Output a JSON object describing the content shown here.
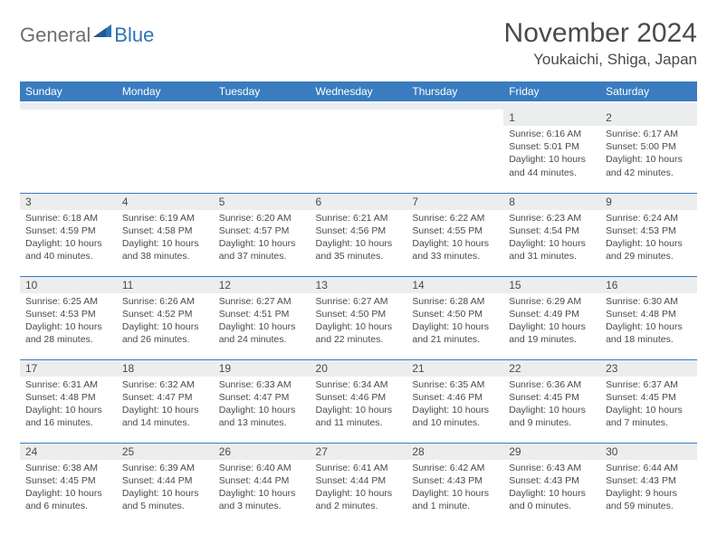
{
  "brand": {
    "part1": "General",
    "part2": "Blue"
  },
  "header": {
    "title": "November 2024",
    "location": "Youkaichi, Shiga, Japan"
  },
  "calendar": {
    "header_bg": "#3a7cbf",
    "header_fg": "#ffffff",
    "cell_border": "#3a7cbf",
    "daynum_bg": "#eceeee",
    "text_color": "#4a4a4a",
    "font_size_day": 12,
    "font_size_body": 10.5,
    "day_names": [
      "Sunday",
      "Monday",
      "Tuesday",
      "Wednesday",
      "Thursday",
      "Friday",
      "Saturday"
    ],
    "weeks": [
      [
        null,
        null,
        null,
        null,
        null,
        {
          "n": "1",
          "sr": "6:16 AM",
          "ss": "5:01 PM",
          "d1": "10 hours",
          "d2": "and 44 minutes."
        },
        {
          "n": "2",
          "sr": "6:17 AM",
          "ss": "5:00 PM",
          "d1": "10 hours",
          "d2": "and 42 minutes."
        }
      ],
      [
        {
          "n": "3",
          "sr": "6:18 AM",
          "ss": "4:59 PM",
          "d1": "10 hours",
          "d2": "and 40 minutes."
        },
        {
          "n": "4",
          "sr": "6:19 AM",
          "ss": "4:58 PM",
          "d1": "10 hours",
          "d2": "and 38 minutes."
        },
        {
          "n": "5",
          "sr": "6:20 AM",
          "ss": "4:57 PM",
          "d1": "10 hours",
          "d2": "and 37 minutes."
        },
        {
          "n": "6",
          "sr": "6:21 AM",
          "ss": "4:56 PM",
          "d1": "10 hours",
          "d2": "and 35 minutes."
        },
        {
          "n": "7",
          "sr": "6:22 AM",
          "ss": "4:55 PM",
          "d1": "10 hours",
          "d2": "and 33 minutes."
        },
        {
          "n": "8",
          "sr": "6:23 AM",
          "ss": "4:54 PM",
          "d1": "10 hours",
          "d2": "and 31 minutes."
        },
        {
          "n": "9",
          "sr": "6:24 AM",
          "ss": "4:53 PM",
          "d1": "10 hours",
          "d2": "and 29 minutes."
        }
      ],
      [
        {
          "n": "10",
          "sr": "6:25 AM",
          "ss": "4:53 PM",
          "d1": "10 hours",
          "d2": "and 28 minutes."
        },
        {
          "n": "11",
          "sr": "6:26 AM",
          "ss": "4:52 PM",
          "d1": "10 hours",
          "d2": "and 26 minutes."
        },
        {
          "n": "12",
          "sr": "6:27 AM",
          "ss": "4:51 PM",
          "d1": "10 hours",
          "d2": "and 24 minutes."
        },
        {
          "n": "13",
          "sr": "6:27 AM",
          "ss": "4:50 PM",
          "d1": "10 hours",
          "d2": "and 22 minutes."
        },
        {
          "n": "14",
          "sr": "6:28 AM",
          "ss": "4:50 PM",
          "d1": "10 hours",
          "d2": "and 21 minutes."
        },
        {
          "n": "15",
          "sr": "6:29 AM",
          "ss": "4:49 PM",
          "d1": "10 hours",
          "d2": "and 19 minutes."
        },
        {
          "n": "16",
          "sr": "6:30 AM",
          "ss": "4:48 PM",
          "d1": "10 hours",
          "d2": "and 18 minutes."
        }
      ],
      [
        {
          "n": "17",
          "sr": "6:31 AM",
          "ss": "4:48 PM",
          "d1": "10 hours",
          "d2": "and 16 minutes."
        },
        {
          "n": "18",
          "sr": "6:32 AM",
          "ss": "4:47 PM",
          "d1": "10 hours",
          "d2": "and 14 minutes."
        },
        {
          "n": "19",
          "sr": "6:33 AM",
          "ss": "4:47 PM",
          "d1": "10 hours",
          "d2": "and 13 minutes."
        },
        {
          "n": "20",
          "sr": "6:34 AM",
          "ss": "4:46 PM",
          "d1": "10 hours",
          "d2": "and 11 minutes."
        },
        {
          "n": "21",
          "sr": "6:35 AM",
          "ss": "4:46 PM",
          "d1": "10 hours",
          "d2": "and 10 minutes."
        },
        {
          "n": "22",
          "sr": "6:36 AM",
          "ss": "4:45 PM",
          "d1": "10 hours",
          "d2": "and 9 minutes."
        },
        {
          "n": "23",
          "sr": "6:37 AM",
          "ss": "4:45 PM",
          "d1": "10 hours",
          "d2": "and 7 minutes."
        }
      ],
      [
        {
          "n": "24",
          "sr": "6:38 AM",
          "ss": "4:45 PM",
          "d1": "10 hours",
          "d2": "and 6 minutes."
        },
        {
          "n": "25",
          "sr": "6:39 AM",
          "ss": "4:44 PM",
          "d1": "10 hours",
          "d2": "and 5 minutes."
        },
        {
          "n": "26",
          "sr": "6:40 AM",
          "ss": "4:44 PM",
          "d1": "10 hours",
          "d2": "and 3 minutes."
        },
        {
          "n": "27",
          "sr": "6:41 AM",
          "ss": "4:44 PM",
          "d1": "10 hours",
          "d2": "and 2 minutes."
        },
        {
          "n": "28",
          "sr": "6:42 AM",
          "ss": "4:43 PM",
          "d1": "10 hours",
          "d2": "and 1 minute."
        },
        {
          "n": "29",
          "sr": "6:43 AM",
          "ss": "4:43 PM",
          "d1": "10 hours",
          "d2": "and 0 minutes."
        },
        {
          "n": "30",
          "sr": "6:44 AM",
          "ss": "4:43 PM",
          "d1": "9 hours",
          "d2": "and 59 minutes."
        }
      ]
    ],
    "labels": {
      "sunrise": "Sunrise:",
      "sunset": "Sunset:",
      "daylight": "Daylight:"
    }
  }
}
